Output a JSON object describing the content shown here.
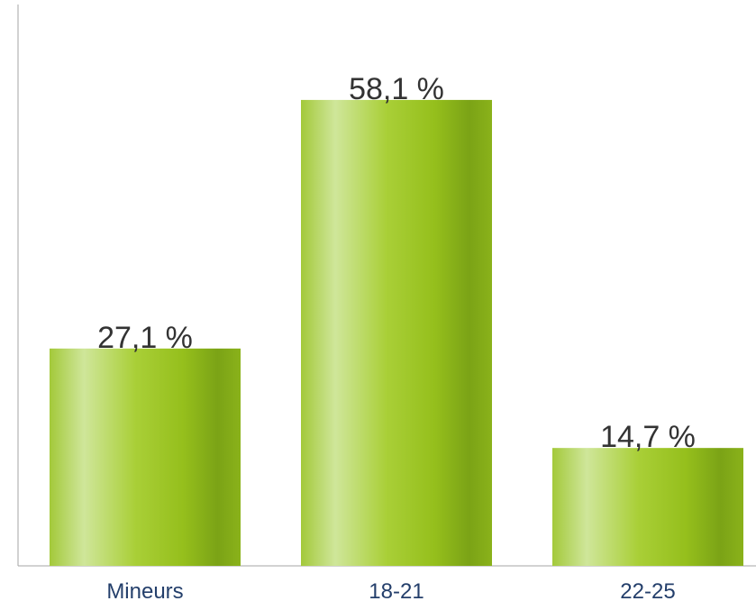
{
  "chart_data": {
    "type": "bar",
    "categories": [
      "Mineurs",
      "18-21",
      "22-25"
    ],
    "values": [
      27.1,
      58.1,
      14.7
    ],
    "value_labels": [
      "27,1 %",
      "58,1 %",
      "14,7 %"
    ],
    "title": "",
    "xlabel": "",
    "ylabel": "",
    "ylim": [
      0,
      70
    ],
    "grid": false,
    "legend": "none",
    "colors": {
      "bar_light": "#c9e38c",
      "bar_mid": "#9cc31e",
      "bar_dark": "#78a015",
      "axis": "#a6a6a6",
      "value_text": "#333333",
      "tick_text": "#243f6b"
    }
  }
}
